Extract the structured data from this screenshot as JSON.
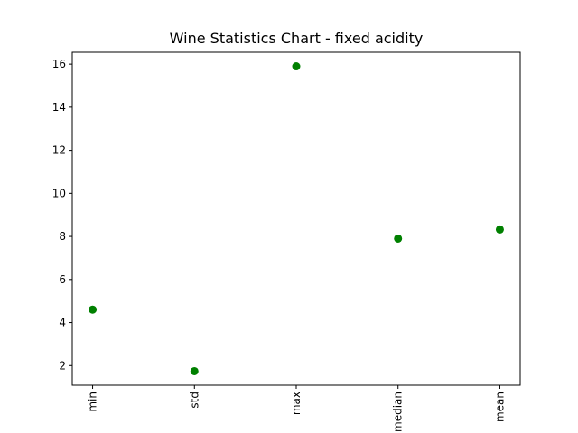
{
  "chart_data": {
    "type": "scatter",
    "title": "Wine Statistics Chart - fixed acidity",
    "xlabel": "",
    "ylabel": "",
    "categories": [
      "min",
      "std",
      "max",
      "median",
      "mean"
    ],
    "values": [
      4.6,
      1.74,
      15.9,
      7.9,
      8.32
    ],
    "ylim": [
      1.09,
      16.55
    ],
    "yticks": [
      2,
      4,
      6,
      8,
      10,
      12,
      14,
      16
    ],
    "x_tick_rotation": "vertical",
    "marker_color": "#008000",
    "grid": false,
    "legend": "none"
  }
}
